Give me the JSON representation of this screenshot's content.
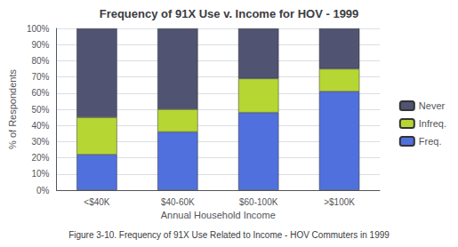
{
  "chart_data": {
    "type": "bar",
    "title": "Frequency of 91X Use v. Income for HOV - 1999",
    "xlabel": "Annual Household Income",
    "ylabel": "% of Respondents",
    "caption": "Figure 3-10. Frequency of 91X Use Related to Income - HOV Commuters in 1999",
    "categories": [
      "<$40K",
      "$40-60K",
      "$60-100K",
      ">$100K"
    ],
    "series": [
      {
        "name": "Freq.",
        "values": [
          22,
          36,
          48,
          61
        ]
      },
      {
        "name": "Infreq.",
        "values": [
          23,
          14,
          21,
          14
        ]
      },
      {
        "name": "Never",
        "values": [
          55,
          50,
          31,
          25
        ]
      }
    ],
    "stacked": true,
    "ylim": [
      0,
      100
    ],
    "yticks": [
      {
        "value": 0,
        "label": "0%"
      },
      {
        "value": 10,
        "label": "10%"
      },
      {
        "value": 20,
        "label": "20%"
      },
      {
        "value": 30,
        "label": "30%"
      },
      {
        "value": 40,
        "label": "40%"
      },
      {
        "value": 50,
        "label": "50%"
      },
      {
        "value": 60,
        "label": "60%"
      },
      {
        "value": 70,
        "label": "70%"
      },
      {
        "value": 80,
        "label": "80%"
      },
      {
        "value": 90,
        "label": "90%"
      },
      {
        "value": 100,
        "label": "100%"
      }
    ],
    "grid": true,
    "legend": "right"
  }
}
